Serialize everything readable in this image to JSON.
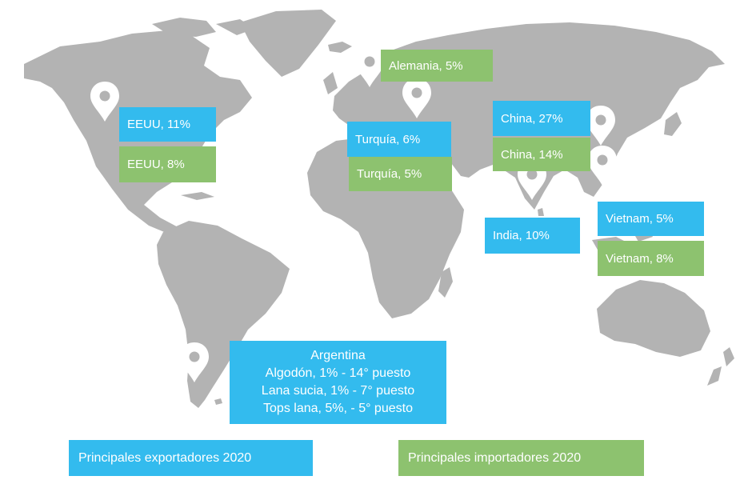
{
  "colors": {
    "exporter": "#33bbee",
    "importer": "#8dc26f",
    "land": "#b3b3b3"
  },
  "pin_icon": "map-pin-icon",
  "labels": {
    "eeuu_exp": "EEUU, 11%",
    "eeuu_imp": "EEUU, 8%",
    "alemania_imp": "Alemania, 5%",
    "turquia_exp": "Turquía, 6%",
    "turquia_imp": "Turquía, 5%",
    "china_exp": "China, 27%",
    "china_imp": "China, 14%",
    "india_exp": "India, 10%",
    "vietnam_exp": "Vietnam, 5%",
    "vietnam_imp": "Vietnam, 8%"
  },
  "argentina": {
    "title": "Argentina",
    "lines": [
      "Algodón, 1% - 14° puesto",
      "Lana sucia, 1% - 7° puesto",
      "Tops lana, 5%, - 5° puesto"
    ]
  },
  "legend": {
    "exporters": "Principales exportadores 2020",
    "importers": "Principales importadores 2020"
  }
}
